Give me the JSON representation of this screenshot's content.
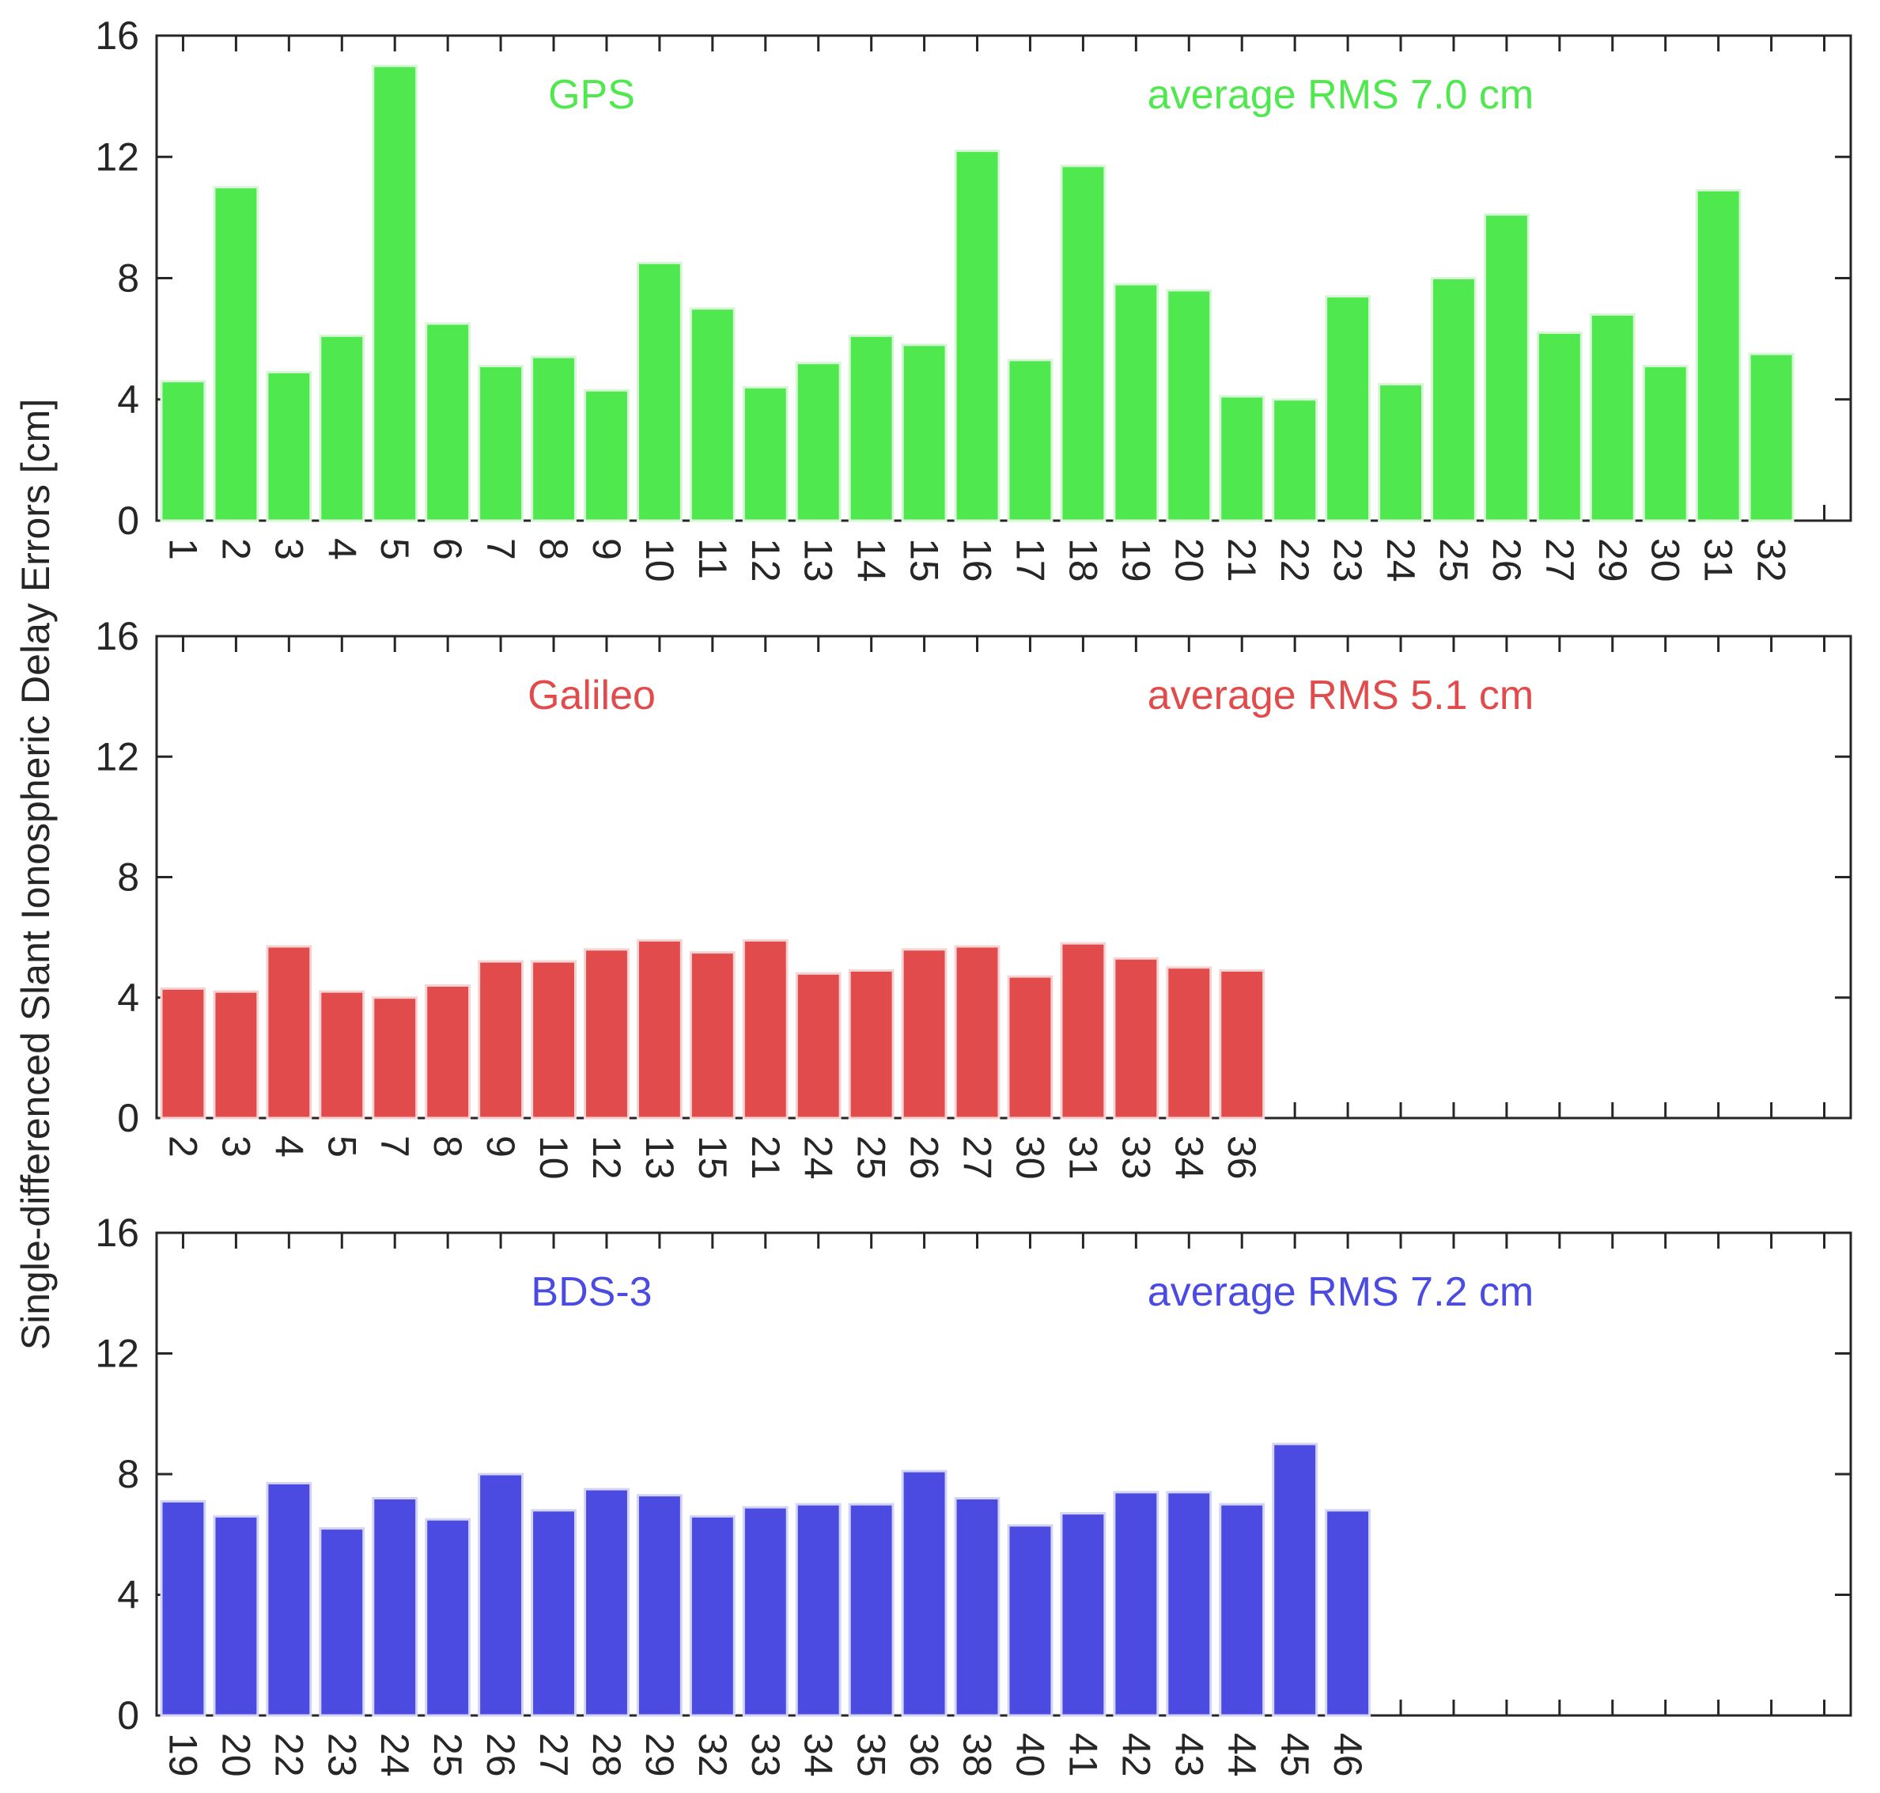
{
  "chart_data": {
    "type": "bar",
    "ylabel": "Single-differenced Slant Ionospheric Delay Errors [cm]",
    "ylim": [
      0,
      16
    ],
    "yticks": [
      0,
      4,
      8,
      12,
      16
    ],
    "grid": false,
    "panels": [
      {
        "title": "GPS",
        "rms_label": "average RMS 7.0 cm",
        "color": "#4fe84f",
        "edge_color": "#d8f5d8",
        "categories": [
          "1",
          "2",
          "3",
          "4",
          "5",
          "6",
          "7",
          "8",
          "9",
          "10",
          "11",
          "12",
          "13",
          "14",
          "15",
          "16",
          "17",
          "18",
          "19",
          "20",
          "21",
          "22",
          "23",
          "24",
          "25",
          "26",
          "27",
          "29",
          "30",
          "31",
          "32"
        ],
        "values": [
          4.6,
          11.0,
          4.9,
          6.1,
          15.0,
          6.5,
          5.1,
          5.4,
          4.3,
          8.5,
          7.0,
          4.4,
          5.2,
          6.1,
          5.8,
          12.2,
          5.3,
          11.7,
          7.8,
          7.6,
          4.1,
          4.0,
          7.4,
          4.5,
          8.0,
          10.1,
          6.2,
          6.8,
          5.1,
          10.9,
          5.5
        ]
      },
      {
        "title": "Galileo",
        "rms_label": "average RMS 5.1 cm",
        "color": "#e24b4b",
        "edge_color": "#f4d4d4",
        "categories": [
          "2",
          "3",
          "4",
          "5",
          "7",
          "8",
          "9",
          "10",
          "12",
          "13",
          "15",
          "21",
          "24",
          "25",
          "26",
          "27",
          "30",
          "31",
          "33",
          "34",
          "36"
        ],
        "values": [
          4.3,
          4.2,
          5.7,
          4.2,
          4.0,
          4.4,
          5.2,
          5.2,
          5.6,
          5.9,
          5.5,
          5.9,
          4.8,
          4.9,
          5.6,
          5.7,
          4.7,
          5.8,
          5.3,
          5.0,
          4.9
        ]
      },
      {
        "title": "BDS-3",
        "rms_label": "average RMS 7.2 cm",
        "color": "#4b4be2",
        "edge_color": "#d4d4f4",
        "categories": [
          "19",
          "20",
          "22",
          "23",
          "24",
          "25",
          "26",
          "27",
          "28",
          "29",
          "32",
          "33",
          "34",
          "35",
          "36",
          "38",
          "40",
          "41",
          "42",
          "43",
          "44",
          "45",
          "46"
        ],
        "values": [
          7.1,
          6.6,
          7.7,
          6.2,
          7.2,
          6.5,
          8.0,
          6.8,
          7.5,
          7.3,
          6.6,
          6.9,
          7.0,
          7.0,
          8.1,
          7.2,
          6.3,
          6.7,
          7.4,
          7.4,
          7.0,
          9.0,
          6.8
        ]
      }
    ]
  }
}
